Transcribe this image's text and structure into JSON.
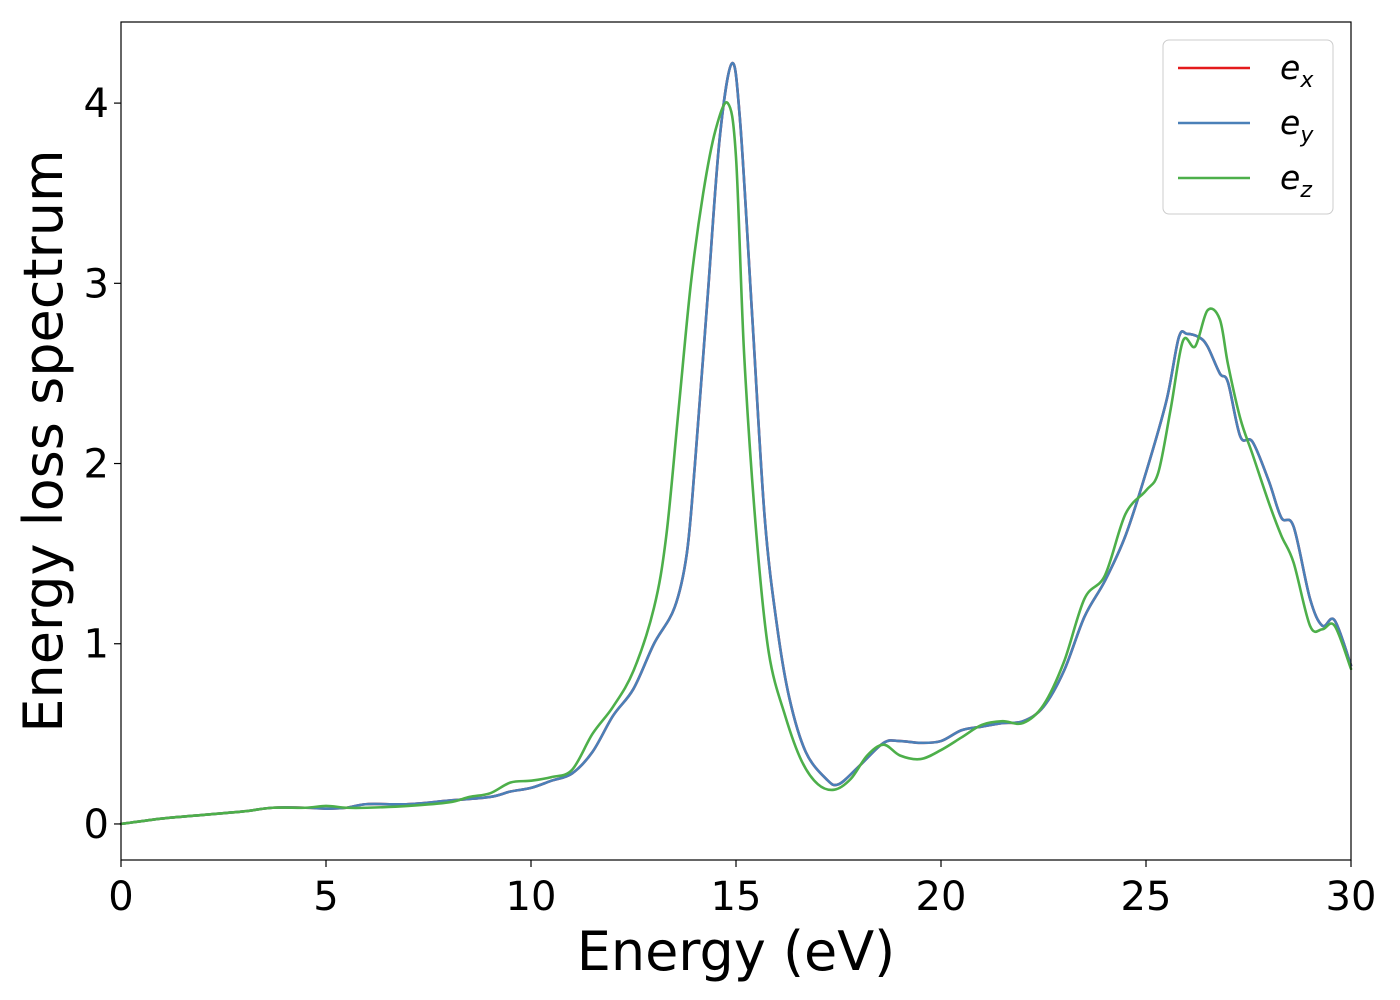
{
  "chart_data": {
    "type": "line",
    "xlabel": "Energy (eV)",
    "ylabel": "Energy loss spectrum",
    "xlim": [
      0,
      30
    ],
    "ylim": [
      -0.2,
      4.45
    ],
    "xticks": [
      0,
      5,
      10,
      15,
      20,
      25,
      30
    ],
    "xtick_labels": [
      "0",
      "5",
      "10",
      "15",
      "20",
      "25",
      "30"
    ],
    "yticks": [
      0,
      1,
      2,
      3,
      4
    ],
    "ytick_labels": [
      "0",
      "1",
      "2",
      "3",
      "4"
    ],
    "grid": false,
    "legend_position": "top-right",
    "series": [
      {
        "name": "e_x",
        "legend_base": "e",
        "legend_sub": "x",
        "color": "#e41a1c",
        "points": [
          [
            0,
            0.0
          ],
          [
            1,
            0.03
          ],
          [
            2,
            0.05
          ],
          [
            3,
            0.07
          ],
          [
            3.7,
            0.09
          ],
          [
            4.5,
            0.09
          ],
          [
            5,
            0.085
          ],
          [
            5.5,
            0.09
          ],
          [
            6,
            0.11
          ],
          [
            7,
            0.11
          ],
          [
            8,
            0.13
          ],
          [
            9,
            0.15
          ],
          [
            9.5,
            0.18
          ],
          [
            10,
            0.2
          ],
          [
            10.5,
            0.24
          ],
          [
            11,
            0.28
          ],
          [
            11.5,
            0.4
          ],
          [
            12,
            0.6
          ],
          [
            12.5,
            0.75
          ],
          [
            13,
            1.0
          ],
          [
            13.5,
            1.2
          ],
          [
            13.8,
            1.5
          ],
          [
            14,
            2.0
          ],
          [
            14.3,
            2.9
          ],
          [
            14.6,
            3.8
          ],
          [
            14.9,
            4.22
          ],
          [
            15.1,
            3.9
          ],
          [
            15.4,
            2.8
          ],
          [
            15.7,
            1.7
          ],
          [
            16,
            1.1
          ],
          [
            16.3,
            0.7
          ],
          [
            16.7,
            0.4
          ],
          [
            17.2,
            0.25
          ],
          [
            17.5,
            0.22
          ],
          [
            18,
            0.32
          ],
          [
            18.6,
            0.45
          ],
          [
            19,
            0.46
          ],
          [
            19.5,
            0.45
          ],
          [
            20,
            0.46
          ],
          [
            20.5,
            0.52
          ],
          [
            21,
            0.54
          ],
          [
            21.5,
            0.56
          ],
          [
            22,
            0.57
          ],
          [
            22.5,
            0.65
          ],
          [
            23,
            0.85
          ],
          [
            23.5,
            1.15
          ],
          [
            24,
            1.35
          ],
          [
            24.5,
            1.6
          ],
          [
            25,
            1.95
          ],
          [
            25.5,
            2.35
          ],
          [
            25.8,
            2.7
          ],
          [
            26,
            2.72
          ],
          [
            26.3,
            2.7
          ],
          [
            26.5,
            2.65
          ],
          [
            26.8,
            2.5
          ],
          [
            27,
            2.45
          ],
          [
            27.3,
            2.15
          ],
          [
            27.6,
            2.12
          ],
          [
            28,
            1.9
          ],
          [
            28.3,
            1.7
          ],
          [
            28.6,
            1.65
          ],
          [
            29,
            1.25
          ],
          [
            29.3,
            1.1
          ],
          [
            29.6,
            1.13
          ],
          [
            30,
            0.88
          ]
        ]
      },
      {
        "name": "e_y",
        "legend_base": "e",
        "legend_sub": "y",
        "color": "#4a80b8",
        "points": [
          [
            0,
            0.0
          ],
          [
            1,
            0.03
          ],
          [
            2,
            0.05
          ],
          [
            3,
            0.07
          ],
          [
            3.7,
            0.09
          ],
          [
            4.5,
            0.09
          ],
          [
            5,
            0.085
          ],
          [
            5.5,
            0.09
          ],
          [
            6,
            0.11
          ],
          [
            7,
            0.11
          ],
          [
            8,
            0.13
          ],
          [
            9,
            0.15
          ],
          [
            9.5,
            0.18
          ],
          [
            10,
            0.2
          ],
          [
            10.5,
            0.24
          ],
          [
            11,
            0.28
          ],
          [
            11.5,
            0.4
          ],
          [
            12,
            0.6
          ],
          [
            12.5,
            0.75
          ],
          [
            13,
            1.0
          ],
          [
            13.5,
            1.2
          ],
          [
            13.8,
            1.5
          ],
          [
            14,
            2.0
          ],
          [
            14.3,
            2.9
          ],
          [
            14.6,
            3.8
          ],
          [
            14.9,
            4.22
          ],
          [
            15.1,
            3.9
          ],
          [
            15.4,
            2.8
          ],
          [
            15.7,
            1.7
          ],
          [
            16,
            1.1
          ],
          [
            16.3,
            0.7
          ],
          [
            16.7,
            0.4
          ],
          [
            17.2,
            0.25
          ],
          [
            17.5,
            0.22
          ],
          [
            18,
            0.32
          ],
          [
            18.6,
            0.45
          ],
          [
            19,
            0.46
          ],
          [
            19.5,
            0.45
          ],
          [
            20,
            0.46
          ],
          [
            20.5,
            0.52
          ],
          [
            21,
            0.54
          ],
          [
            21.5,
            0.56
          ],
          [
            22,
            0.57
          ],
          [
            22.5,
            0.65
          ],
          [
            23,
            0.85
          ],
          [
            23.5,
            1.15
          ],
          [
            24,
            1.35
          ],
          [
            24.5,
            1.6
          ],
          [
            25,
            1.95
          ],
          [
            25.5,
            2.35
          ],
          [
            25.8,
            2.7
          ],
          [
            26,
            2.72
          ],
          [
            26.3,
            2.7
          ],
          [
            26.5,
            2.65
          ],
          [
            26.8,
            2.5
          ],
          [
            27,
            2.45
          ],
          [
            27.3,
            2.15
          ],
          [
            27.6,
            2.12
          ],
          [
            28,
            1.9
          ],
          [
            28.3,
            1.7
          ],
          [
            28.6,
            1.65
          ],
          [
            29,
            1.25
          ],
          [
            29.3,
            1.1
          ],
          [
            29.6,
            1.13
          ],
          [
            30,
            0.88
          ]
        ]
      },
      {
        "name": "e_z",
        "legend_base": "e",
        "legend_sub": "z",
        "color": "#4daf4a",
        "points": [
          [
            0,
            0.0
          ],
          [
            1,
            0.03
          ],
          [
            2,
            0.05
          ],
          [
            3,
            0.07
          ],
          [
            3.7,
            0.09
          ],
          [
            4.5,
            0.09
          ],
          [
            5,
            0.1
          ],
          [
            5.5,
            0.09
          ],
          [
            6,
            0.09
          ],
          [
            7,
            0.1
          ],
          [
            8,
            0.12
          ],
          [
            8.5,
            0.15
          ],
          [
            9,
            0.17
          ],
          [
            9.5,
            0.23
          ],
          [
            10,
            0.24
          ],
          [
            10.5,
            0.26
          ],
          [
            11,
            0.3
          ],
          [
            11.5,
            0.5
          ],
          [
            12,
            0.65
          ],
          [
            12.5,
            0.85
          ],
          [
            13,
            1.2
          ],
          [
            13.3,
            1.6
          ],
          [
            13.6,
            2.3
          ],
          [
            13.9,
            3.0
          ],
          [
            14.2,
            3.5
          ],
          [
            14.5,
            3.85
          ],
          [
            14.8,
            4.0
          ],
          [
            15,
            3.7
          ],
          [
            15.2,
            2.6
          ],
          [
            15.5,
            1.6
          ],
          [
            15.8,
            0.95
          ],
          [
            16.2,
            0.6
          ],
          [
            16.6,
            0.35
          ],
          [
            17,
            0.22
          ],
          [
            17.4,
            0.19
          ],
          [
            17.8,
            0.25
          ],
          [
            18.2,
            0.38
          ],
          [
            18.6,
            0.44
          ],
          [
            19,
            0.38
          ],
          [
            19.5,
            0.36
          ],
          [
            20,
            0.41
          ],
          [
            20.5,
            0.48
          ],
          [
            21,
            0.55
          ],
          [
            21.5,
            0.57
          ],
          [
            22,
            0.56
          ],
          [
            22.5,
            0.66
          ],
          [
            23,
            0.9
          ],
          [
            23.5,
            1.25
          ],
          [
            24,
            1.38
          ],
          [
            24.5,
            1.72
          ],
          [
            25,
            1.85
          ],
          [
            25.3,
            1.95
          ],
          [
            25.6,
            2.3
          ],
          [
            25.9,
            2.68
          ],
          [
            26.2,
            2.65
          ],
          [
            26.5,
            2.85
          ],
          [
            26.8,
            2.8
          ],
          [
            27,
            2.55
          ],
          [
            27.3,
            2.25
          ],
          [
            27.6,
            2.05
          ],
          [
            28,
            1.78
          ],
          [
            28.3,
            1.6
          ],
          [
            28.6,
            1.45
          ],
          [
            29,
            1.1
          ],
          [
            29.3,
            1.08
          ],
          [
            29.6,
            1.1
          ],
          [
            30,
            0.86
          ]
        ]
      }
    ]
  }
}
